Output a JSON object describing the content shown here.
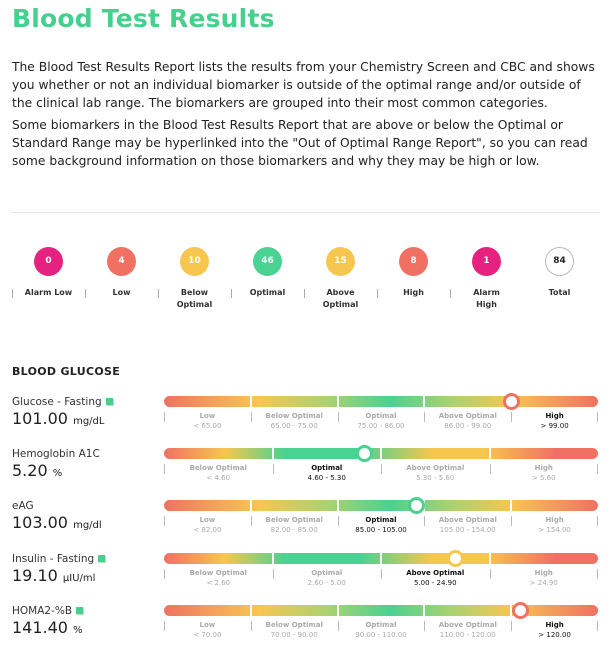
{
  "title": "Blood Test Results",
  "intro": [
    "The Blood Test Results Report lists the results from your Chemistry Screen and CBC and shows you whether or not an individual biomarker is outside of the optimal range and/or outside of the clinical lab range. The biomarkers are grouped into their most common categories.",
    "Some biomarkers in the Blood Test Results Report that are above or below the Optimal or Standard Range may be hyperlinked into the \"Out of Optimal Range Report\", so you can read some background information on those biomarkers and why they may be high or low."
  ],
  "summary": [
    {
      "count": "0",
      "label": "Alarm Low",
      "color": "#e5227f"
    },
    {
      "count": "4",
      "label": "Low",
      "color": "#f07163"
    },
    {
      "count": "10",
      "label": "Below Optimal",
      "color": "#f7c64f"
    },
    {
      "count": "46",
      "label": "Optimal",
      "color": "#49d291"
    },
    {
      "count": "15",
      "label": "Above Optimal",
      "color": "#f7c64f"
    },
    {
      "count": "8",
      "label": "High",
      "color": "#f07163"
    },
    {
      "count": "1",
      "label": "Alarm High",
      "color": "#e5227f"
    },
    {
      "count": "84",
      "label": "Total",
      "color": "#ffffff"
    }
  ],
  "section_title": "BLOOD GLUCOSE",
  "biomarkers": [
    {
      "name": "Glucose - Fasting",
      "has_doc": true,
      "value": "101.00",
      "unit": "mg/dL",
      "marker_fraction": 0.8,
      "marker_color": "#f07163",
      "segments": [
        {
          "label": "Low",
          "range": "< 65.00"
        },
        {
          "label": "Below Optimal",
          "range": "65.00 - 75.00"
        },
        {
          "label": "Optimal",
          "range": "75.00 - 86.00"
        },
        {
          "label": "Above Optimal",
          "range": "86.00 - 99.00"
        },
        {
          "label": "High",
          "range": "> 99.00",
          "active": true
        }
      ]
    },
    {
      "name": "Hemoglobin A1C",
      "has_doc": false,
      "value": "5.20",
      "unit": "%",
      "marker_fraction": 0.46,
      "marker_color": "#49d291",
      "segments": [
        {
          "label": "Below Optimal",
          "range": "< 4.60"
        },
        {
          "label": "Optimal",
          "range": "4.60 - 5.30",
          "active": true
        },
        {
          "label": "Above Optimal",
          "range": "5.30 - 5.60"
        },
        {
          "label": "High",
          "range": "> 5.60"
        }
      ]
    },
    {
      "name": "eAG",
      "has_doc": false,
      "value": "103.00",
      "unit": "mg/dl",
      "marker_fraction": 0.58,
      "marker_color": "#49d291",
      "segments": [
        {
          "label": "Low",
          "range": "< 82.00"
        },
        {
          "label": "Below Optimal",
          "range": "82.00 - 85.00"
        },
        {
          "label": "Optimal",
          "range": "85.00 - 105.00",
          "active": true
        },
        {
          "label": "Above Optimal",
          "range": "105.00 - 154.00"
        },
        {
          "label": "High",
          "range": "> 154.00"
        }
      ]
    },
    {
      "name": "Insulin - Fasting",
      "has_doc": true,
      "value": "19.10",
      "unit": "µIU/ml",
      "marker_fraction": 0.67,
      "marker_color": "#f7c64f",
      "segments": [
        {
          "label": "Below Optimal",
          "range": "< 2.60"
        },
        {
          "label": "Optimal",
          "range": "2.60 - 5.00"
        },
        {
          "label": "Above Optimal",
          "range": "5.00 - 24.90",
          "active": true
        },
        {
          "label": "High",
          "range": "> 24.90"
        }
      ]
    },
    {
      "name": "HOMA2-%B",
      "has_doc": true,
      "value": "141.40",
      "unit": "%",
      "marker_fraction": 0.82,
      "marker_color": "#f07163",
      "segments": [
        {
          "label": "Low",
          "range": "< 70.00"
        },
        {
          "label": "Below Optimal",
          "range": "70.00 - 90.00"
        },
        {
          "label": "Optimal",
          "range": "90.00 - 110.00"
        },
        {
          "label": "Above Optimal",
          "range": "110.00 - 120.00"
        },
        {
          "label": "High",
          "range": "> 120.00",
          "active": true
        }
      ]
    }
  ]
}
